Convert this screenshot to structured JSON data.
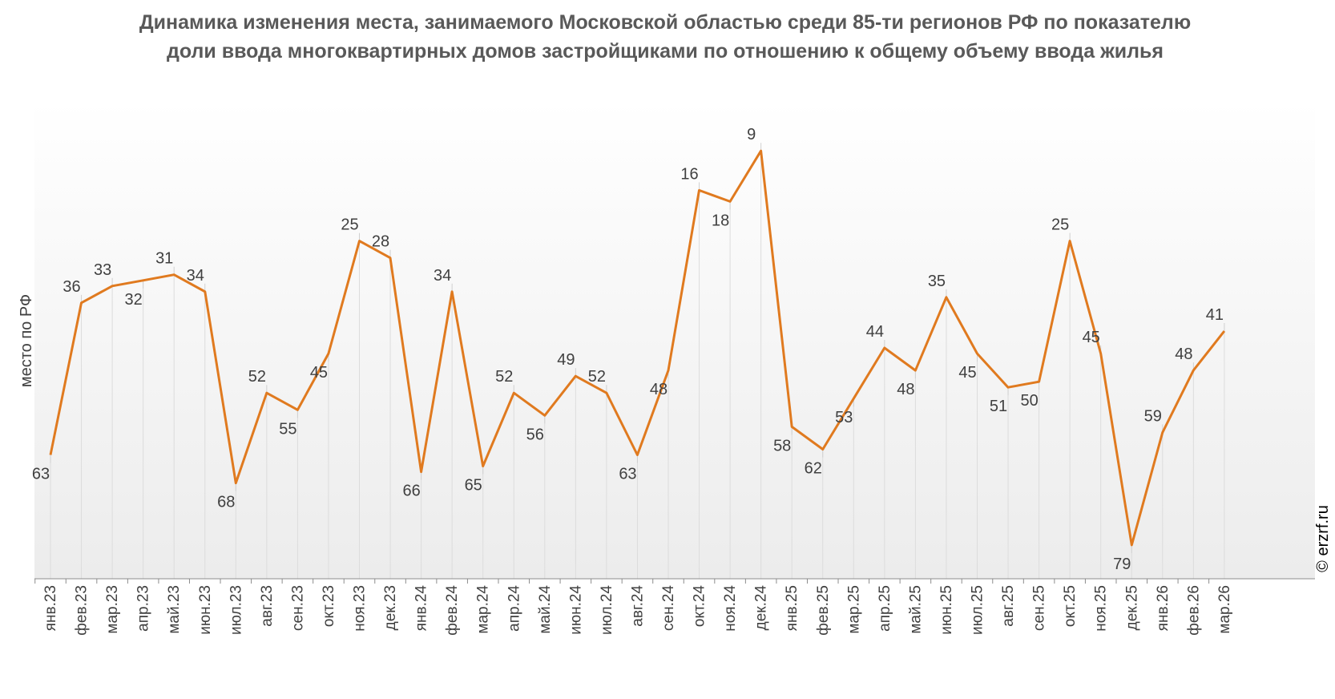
{
  "chart_data": {
    "type": "line",
    "title": "Динамика изменения места, занимаемого Московской областью среди 85-ти регионов РФ по показателю доли ввода многоквартирных домов застройщиками по отношению к общему объему ввода жилья",
    "ylabel": "место по РФ",
    "xlabel": "",
    "y_inverted": true,
    "ylim": [
      0,
      85
    ],
    "grid": "vertical",
    "legend": "none",
    "categories": [
      "янв.23",
      "фев.23",
      "мар.23",
      "апр.23",
      "май.23",
      "июн.23",
      "июл.23",
      "авг.23",
      "сен.23",
      "окт.23",
      "ноя.23",
      "дек.23",
      "янв.24",
      "фев.24",
      "мар.24",
      "апр.24",
      "май.24",
      "июн.24",
      "июл.24",
      "авг.24",
      "сен.24",
      "окт.24",
      "ноя.24",
      "дек.24",
      "янв.25",
      "фев.25",
      "мар.25",
      "апр.25",
      "май.25",
      "июн.25",
      "июл.25",
      "авг.25",
      "сен.25",
      "окт.25",
      "ноя.25",
      "дек.25",
      "янв.26",
      "фев.26",
      "мар.26"
    ],
    "values": [
      63,
      36,
      33,
      32,
      31,
      34,
      68,
      52,
      55,
      45,
      25,
      28,
      66,
      34,
      65,
      52,
      56,
      49,
      52,
      63,
      48,
      16,
      18,
      9,
      58,
      62,
      53,
      44,
      48,
      35,
      45,
      51,
      50,
      25,
      45,
      79,
      59,
      48,
      41
    ],
    "line_color": "#e07a1f",
    "watermark": "© erzrf.ru"
  }
}
